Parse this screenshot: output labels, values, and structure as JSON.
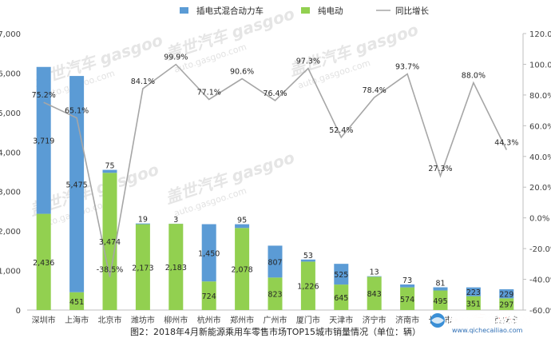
{
  "caption": "图2：2018年4月新能源乘用车零售市场TOP15城市销量情况（单位：辆）",
  "watermark": {
    "brand": "盖世汽车 gasgoo",
    "site": "auto.gasgoo.com"
  },
  "logo": {
    "text": "中国汽车材料网",
    "url": "www.qichecailiao.com"
  },
  "chart_data": {
    "type": "bar",
    "stacked": true,
    "categories": [
      "深圳市",
      "上海市",
      "北京市",
      "潍坊市",
      "柳州市",
      "杭州市",
      "郑州市",
      "广州市",
      "厦门市",
      "天津市",
      "济宁市",
      "济南市",
      "长沙市",
      "",
      "西安市"
    ],
    "series": [
      {
        "name": "纯电动",
        "type": "bar",
        "color": "#92d050",
        "values": [
          2436,
          451,
          3474,
          2173,
          2183,
          724,
          2078,
          823,
          1226,
          645,
          843,
          574,
          495,
          351,
          297
        ]
      },
      {
        "name": "插电式混合动力车",
        "type": "bar",
        "color": "#5b9bd5",
        "values": [
          3719,
          5475,
          75,
          19,
          3,
          1450,
          95,
          807,
          53,
          525,
          13,
          73,
          81,
          223,
          229
        ]
      },
      {
        "name": "同比增长",
        "type": "line",
        "color": "#a6a6a6",
        "axis": "right",
        "values": [
          75.2,
          65.1,
          -38.5,
          84.1,
          99.9,
          77.1,
          90.6,
          76.4,
          97.3,
          52.4,
          78.4,
          93.7,
          27.3,
          88.0,
          44.3
        ]
      }
    ],
    "legend_order": [
      "插电式混合动力车",
      "纯电动",
      "同比增长"
    ],
    "y_left": {
      "min": 0,
      "max": 7000,
      "step": 1000
    },
    "y_right": {
      "min": -60,
      "max": 120,
      "step": 20
    },
    "legend_position": "top",
    "grid": false,
    "colors": {
      "axis_text": "#404040",
      "label_text": "#262626",
      "line": "#a6a6a6"
    }
  }
}
